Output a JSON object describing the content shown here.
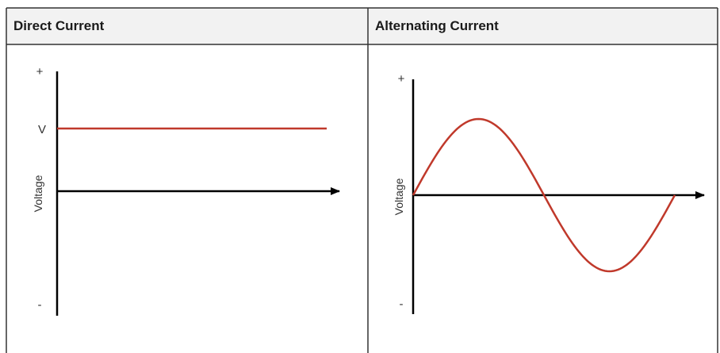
{
  "table": {
    "headers": [
      "Direct Current",
      "Alternating Current"
    ]
  },
  "dc": {
    "plus": "+",
    "minus": "-",
    "level": "V",
    "ylabel": "Voltage"
  },
  "ac": {
    "plus": "+",
    "minus": "-",
    "ylabel": "Voltage"
  },
  "colors": {
    "signal": "#c0392b",
    "axis": "#000000",
    "border": "#333333",
    "header_bg": "#f2f2f2"
  }
}
